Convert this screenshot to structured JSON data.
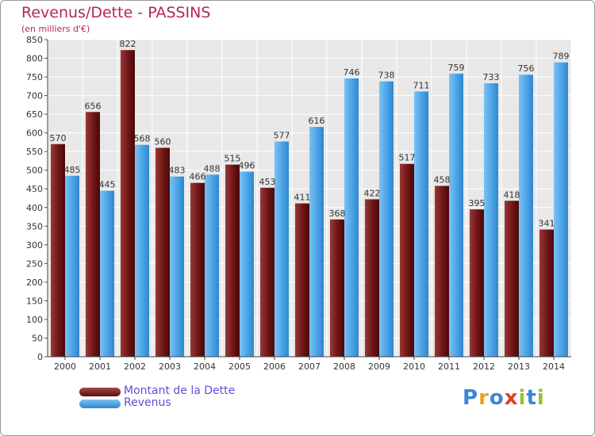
{
  "chart_data": {
    "type": "bar",
    "title": "Revenus/Dette - PASSINS",
    "subtitle": "(en milliers d'€)",
    "categories": [
      "2000",
      "2001",
      "2002",
      "2003",
      "2004",
      "2005",
      "2006",
      "2007",
      "2008",
      "2009",
      "2010",
      "2011",
      "2012",
      "2013",
      "2014"
    ],
    "series": [
      {
        "name": "Montant de la Dette",
        "color": "#7a1a1a",
        "values": [
          570,
          656,
          822,
          560,
          466,
          515,
          453,
          411,
          368,
          422,
          517,
          458,
          395,
          418,
          341
        ]
      },
      {
        "name": "Revenus",
        "color": "#4aa3e6",
        "values": [
          485,
          445,
          568,
          483,
          488,
          496,
          577,
          616,
          746,
          738,
          711,
          759,
          733,
          756,
          789
        ]
      }
    ],
    "value_labels": [
      [
        "570",
        "656",
        "822",
        "560",
        "466",
        "515",
        "453",
        "411",
        "368",
        "422",
        "517",
        "458",
        "395",
        "418",
        "341"
      ],
      [
        "485",
        "445",
        "568",
        "483",
        "488",
        "496",
        "577",
        "616",
        "746",
        "738",
        "711",
        "759",
        "733",
        "756",
        "789"
      ]
    ],
    "yticks": [
      "0",
      "50",
      "100",
      "150",
      "200",
      "250",
      "300",
      "350",
      "400",
      "450",
      "500",
      "550",
      "600",
      "650",
      "700",
      "750",
      "800",
      "850"
    ],
    "ylim": [
      0,
      850
    ],
    "grid": true,
    "legend_position": "bottom-left"
  },
  "logo": {
    "chars": [
      "P",
      "r",
      "o",
      "x",
      "i",
      "t",
      "i"
    ],
    "colors": [
      "#3a86d8",
      "#f0a020",
      "#3a86d8",
      "#e04020",
      "#9ac030",
      "#3a86d8",
      "#9ac030"
    ]
  }
}
